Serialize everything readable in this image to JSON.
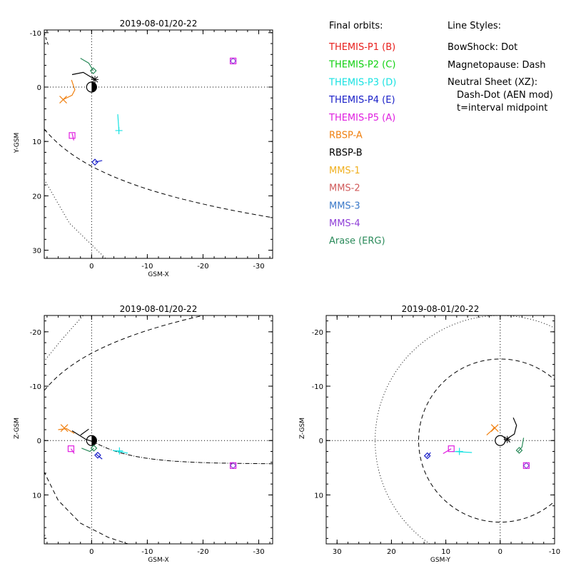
{
  "chart_data": [
    {
      "type": "scatter",
      "title": "2019-08-01/20-22",
      "xlabel": "GSM-X",
      "ylabel": "Y-GSM",
      "xlim": [
        8.5,
        -32.5
      ],
      "ylim": [
        -10.5,
        31.5
      ],
      "xticks": [
        "0",
        "-10",
        "-20",
        "-30"
      ],
      "yticks": [
        "-10",
        "0",
        "10",
        "20",
        "30"
      ],
      "grid": false
    },
    {
      "type": "scatter",
      "title": "2019-08-01/20-22",
      "xlabel": "GSM-X",
      "ylabel": "Z-GSM",
      "xlim": [
        8.5,
        -32.5
      ],
      "ylim": [
        -23,
        19
      ],
      "xticks": [
        "0",
        "-10",
        "-20",
        "-30"
      ],
      "yticks": [
        "-20",
        "-10",
        "0",
        "10"
      ],
      "grid": false
    },
    {
      "type": "scatter",
      "title": "2019-08-01/20-22",
      "xlabel": "GSM-Y",
      "ylabel": "Z-GSM",
      "xlim": [
        32,
        -10
      ],
      "ylim": [
        -23,
        19
      ],
      "xticks": [
        "30",
        "20",
        "10",
        "0",
        "-10"
      ],
      "yticks": [
        "-20",
        "-10",
        "0",
        "10"
      ],
      "grid": false
    }
  ],
  "legend": {
    "heading": "Final orbits:",
    "items": [
      {
        "label": "THEMIS-P1 (B)",
        "color": "#e8201e"
      },
      {
        "label": "THEMIS-P2 (C)",
        "color": "#10d010"
      },
      {
        "label": "THEMIS-P3 (D)",
        "color": "#18e2e2"
      },
      {
        "label": "THEMIS-P4 (E)",
        "color": "#1a20c8"
      },
      {
        "label": "THEMIS-P5 (A)",
        "color": "#e020e0"
      },
      {
        "label": "RBSP-A",
        "color": "#f08010"
      },
      {
        "label": "RBSP-B",
        "color": "#000000"
      },
      {
        "label": "MMS-1",
        "color": "#f0b020"
      },
      {
        "label": "MMS-2",
        "color": "#d05a5a"
      },
      {
        "label": "MMS-3",
        "color": "#3a78c8"
      },
      {
        "label": "MMS-4",
        "color": "#9040d8"
      },
      {
        "label": "Arase (ERG)",
        "color": "#2a8a5a"
      }
    ]
  },
  "line_styles": {
    "heading": "Line Styles:",
    "bowshock": "BowShock: Dot",
    "magnetopause": "Magnetopause: Dash",
    "neutral_sheet_1": "Neutral Sheet (XZ):",
    "neutral_sheet_2": "Dash-Dot (AEN mod)",
    "neutral_sheet_3": "t=interval midpoint"
  }
}
